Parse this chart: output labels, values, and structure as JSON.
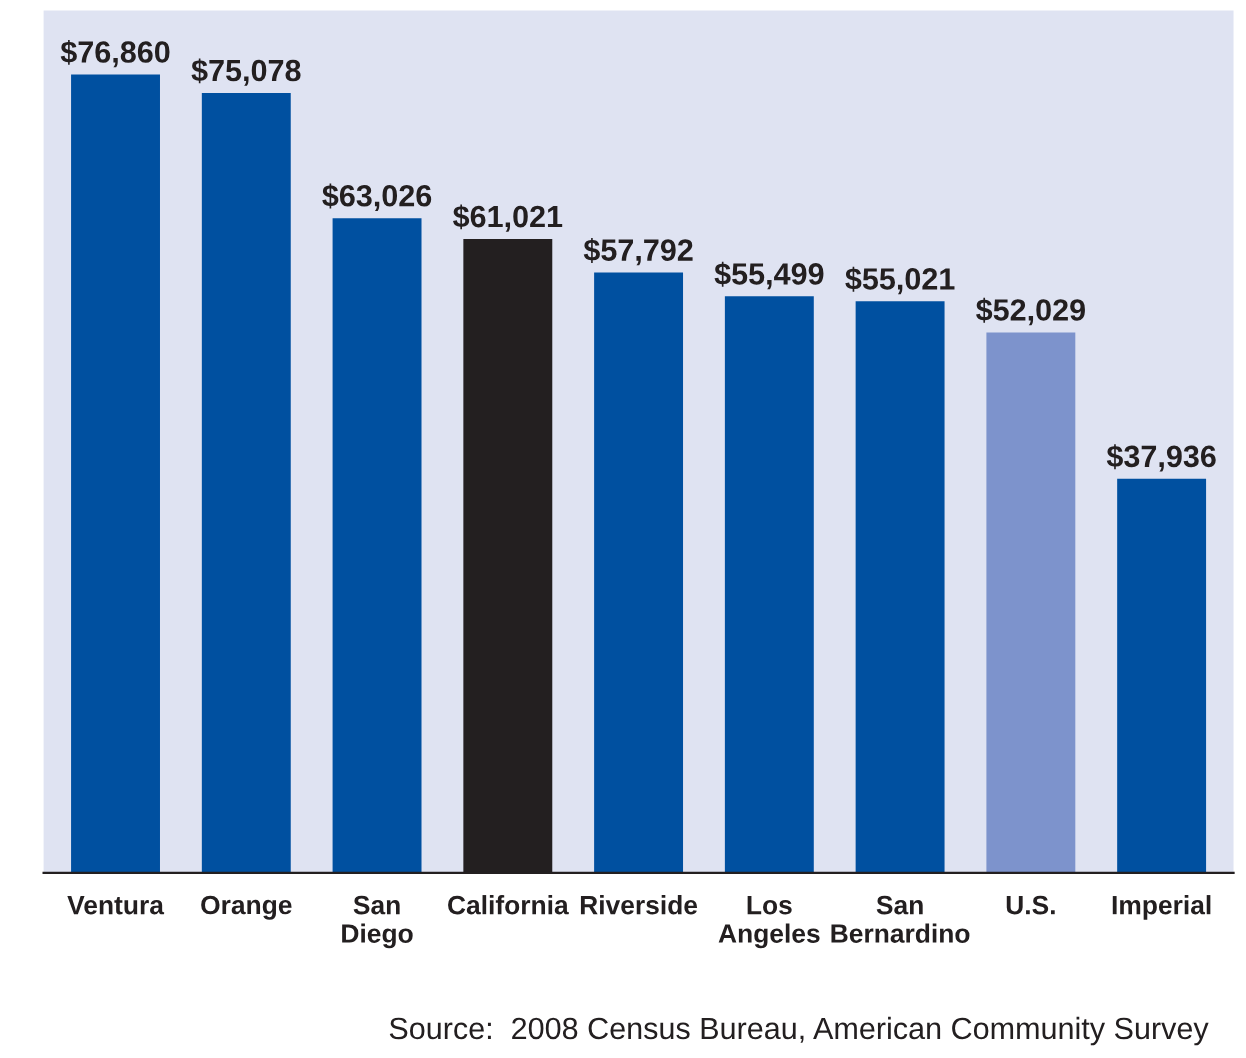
{
  "chart_data": {
    "type": "bar",
    "categories": [
      "Ventura",
      "Orange",
      "San\nDiego",
      "California",
      "Riverside",
      "Los\nAngeles",
      "San\nBernardino",
      "U.S.",
      "Imperial"
    ],
    "values": [
      76860,
      75078,
      63026,
      61021,
      57792,
      55499,
      55021,
      52029,
      37936
    ],
    "colors": [
      "#0050a0",
      "#0050a0",
      "#0050a0",
      "#231f20",
      "#0050a0",
      "#0050a0",
      "#0050a0",
      "#7d93cc",
      "#0050a0"
    ],
    "value_labels": [
      "$76,860",
      "$75,078",
      "$63,026",
      "$61,021",
      "$57,792",
      "$55,499",
      "$55,021",
      "$52,029",
      "$37,936"
    ],
    "annotations": [
      "Source:  2008 Census Bureau, American Community Survey"
    ],
    "grid": false,
    "legend": false,
    "tick_labels": "x"
  }
}
